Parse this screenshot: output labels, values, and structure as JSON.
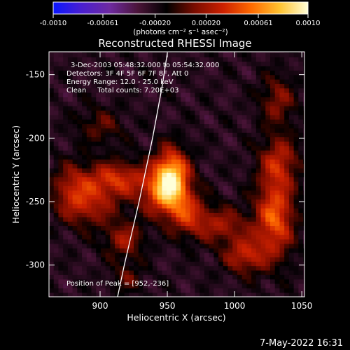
{
  "chart_data": {
    "type": "heatmap",
    "title": "Reconstructed RHESSI Image",
    "xlabel": "Heliocentric X (arcsec)",
    "ylabel": "Heliocentric Y (arcsec)",
    "xlim": [
      862,
      1052
    ],
    "ylim": [
      -325,
      -132
    ],
    "x_ticks": [
      900,
      950,
      1000,
      1050
    ],
    "y_ticks": [
      -150,
      -200,
      -250,
      -300
    ],
    "grid": false,
    "colorbar": {
      "range": [
        -0.001,
        0.001
      ],
      "tick_values": [
        -0.001,
        -0.00061,
        -0.0002,
        0.0002,
        0.00061,
        0.001
      ],
      "tick_labels": [
        "-0.0010",
        "-0.00061",
        "-0.00020",
        "0.00020",
        "0.00061",
        "0.0010"
      ],
      "label": "(photons cm⁻² s⁻¹ asec⁻²)",
      "colors": [
        "#0a16ff",
        "#4a1fd0",
        "#6e2aa0",
        "#4a1438",
        "#000000",
        "#7a0c00",
        "#cc2000",
        "#ff6a00",
        "#ffc230",
        "#ffffd8"
      ]
    },
    "annotations": [
      "3-Dec-2003 05:48:32.000 to 05:54:32.000",
      "Detectors: 3F 4F 5F 6F 7F 8F, Att 0",
      "Energy Range: 12.0 - 25.0 keV",
      "Clean     Total counts: 7.20E+03"
    ],
    "peak_label": "Position of Peak = [952,-236]",
    "peak": [
      952,
      -236
    ],
    "sources": [
      {
        "x": 953,
        "y": -228,
        "amp": 0.00095,
        "sx": 9,
        "sy": 14
      },
      {
        "x": 948,
        "y": -245,
        "amp": 0.0006,
        "sx": 12,
        "sy": 12
      },
      {
        "x": 1030,
        "y": -262,
        "amp": 0.0007,
        "sx": 10,
        "sy": 22
      },
      {
        "x": 1033,
        "y": -218,
        "amp": 0.00045,
        "sx": 10,
        "sy": 14
      },
      {
        "x": 1032,
        "y": -170,
        "amp": 0.00035,
        "sx": 9,
        "sy": 14
      },
      {
        "x": 1008,
        "y": -292,
        "amp": 0.0005,
        "sx": 11,
        "sy": 10
      },
      {
        "x": 990,
        "y": -268,
        "amp": 0.0004,
        "sx": 14,
        "sy": 10
      },
      {
        "x": 912,
        "y": -232,
        "amp": 0.00055,
        "sx": 18,
        "sy": 10
      },
      {
        "x": 893,
        "y": -253,
        "amp": 0.0004,
        "sx": 14,
        "sy": 12
      },
      {
        "x": 878,
        "y": -240,
        "amp": 0.00035,
        "sx": 10,
        "sy": 14
      },
      {
        "x": 918,
        "y": -280,
        "amp": 0.0004,
        "sx": 10,
        "sy": 10
      },
      {
        "x": 965,
        "y": -260,
        "amp": 0.00045,
        "sx": 10,
        "sy": 12
      },
      {
        "x": 900,
        "y": -190,
        "amp": 0.00025,
        "sx": 12,
        "sy": 10
      },
      {
        "x": 920,
        "y": -310,
        "amp": 0.00025,
        "sx": 8,
        "sy": 8
      }
    ],
    "limb_curve": [
      [
        950,
        -133
      ],
      [
        946,
        -160
      ],
      [
        939,
        -200
      ],
      [
        929,
        -250
      ],
      [
        918,
        -300
      ],
      [
        913,
        -325
      ]
    ]
  },
  "footer": {
    "timestamp": "7-May-2022 16:31"
  }
}
